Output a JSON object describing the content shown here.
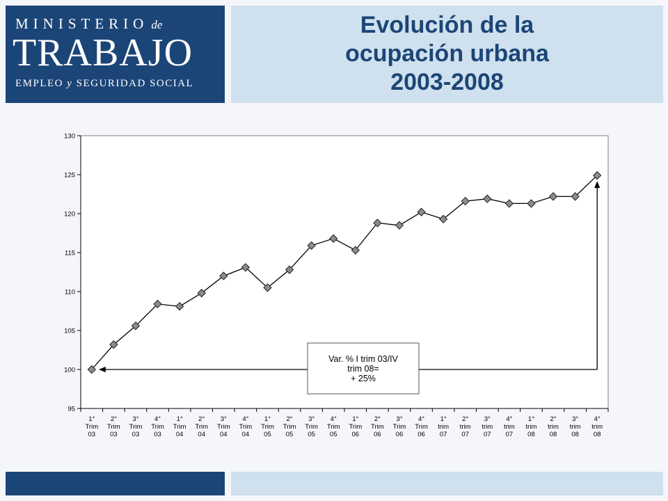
{
  "logo": {
    "line1": "MINISTERIO",
    "line1_de": "de",
    "line2": "TRABAJO",
    "line3_a": "EMPLEO",
    "line3_y": "y",
    "line3_b": "SEGURIDAD SOCIAL"
  },
  "title": {
    "line1": "Evolución de la",
    "line2": "ocupación urbana",
    "line3": "2003-2008"
  },
  "colors": {
    "brand_dark": "#1c4577",
    "brand_light": "#cfe0ee",
    "marker": "#8c8c8c"
  },
  "chart_data": {
    "type": "line",
    "title": "",
    "xlabel": "",
    "ylabel": "",
    "ylim": [
      95,
      130
    ],
    "yticks": [
      95,
      100,
      105,
      110,
      115,
      120,
      125,
      130
    ],
    "grid": false,
    "categories": [
      [
        "1°",
        "Trim",
        "03"
      ],
      [
        "2°",
        "Trim",
        "03"
      ],
      [
        "3°",
        "Trim",
        "03"
      ],
      [
        "4°",
        "Trim",
        "03"
      ],
      [
        "1°",
        "Trim",
        "04"
      ],
      [
        "2°",
        "Trim",
        "04"
      ],
      [
        "3°",
        "Trim",
        "04"
      ],
      [
        "4°",
        "Trim",
        "04"
      ],
      [
        "1°",
        "Trim",
        "05"
      ],
      [
        "2°",
        "Trim",
        "05"
      ],
      [
        "3°",
        "Trim",
        "05"
      ],
      [
        "4°",
        "Trim",
        "05"
      ],
      [
        "1°",
        "Trim",
        "06"
      ],
      [
        "2°",
        "Trim",
        "06"
      ],
      [
        "3°",
        "Trim",
        "06"
      ],
      [
        "4°",
        "Trim",
        "06"
      ],
      [
        "1°",
        "trim",
        "07"
      ],
      [
        "2°",
        "trim",
        "07"
      ],
      [
        "3°",
        "trim",
        "07"
      ],
      [
        "4°",
        "trim",
        "07"
      ],
      [
        "1°",
        "trim",
        "08"
      ],
      [
        "2°",
        "trim",
        "08"
      ],
      [
        "3°",
        "trim",
        "08"
      ],
      [
        "4°",
        "trim",
        "08"
      ]
    ],
    "values": [
      100.0,
      103.2,
      105.6,
      108.4,
      108.1,
      109.8,
      112.0,
      113.1,
      110.5,
      112.8,
      115.9,
      116.8,
      115.3,
      118.8,
      118.5,
      120.2,
      119.3,
      121.6,
      121.9,
      121.3,
      121.3,
      122.2,
      122.2,
      124.9
    ],
    "annotation": {
      "lines": [
        "Var. % I trim 03/IV",
        "trim 08=",
        "+ 25%"
      ]
    }
  }
}
